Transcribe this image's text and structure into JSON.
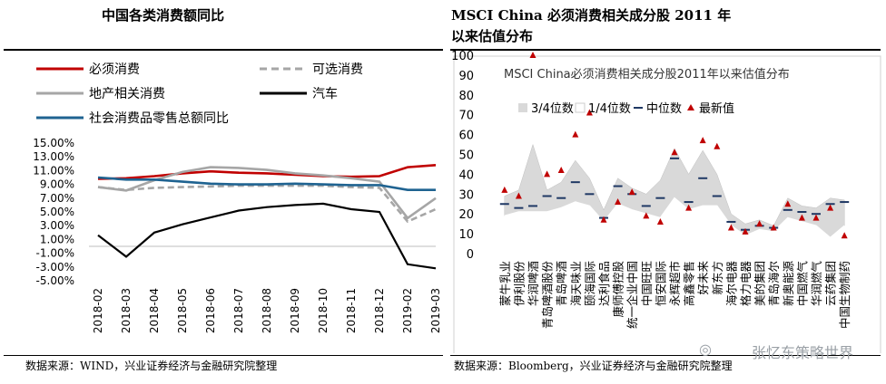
{
  "left_panel": {
    "title": "中国各类消费额同比",
    "source": "数据来源：WIND，兴业证券经济与金融研究院整理"
  },
  "right_panel": {
    "title_line1": "MSCI China 必须消费相关成分股 2011 年",
    "title_line2": "以来估值分布",
    "source": "数据来源：Bloomberg，兴业证券经济与金融研究院整理"
  },
  "watermark": "张忆东策略世界",
  "chart_data": [
    {
      "type": "line",
      "title": "",
      "x": [
        "2018-02",
        "2018-03",
        "2018-04",
        "2018-05",
        "2018-06",
        "2018-07",
        "2018-08",
        "2018-09",
        "2018-10",
        "2018-11",
        "2018-12",
        "2019-02",
        "2019-03"
      ],
      "ylim": [
        -5,
        15
      ],
      "yticks": [
        "15.00%",
        "13.00%",
        "11.00%",
        "9.00%",
        "7.00%",
        "5.00%",
        "3.00%",
        "1.00%",
        "-1.00%",
        "-3.00%",
        "-5.00%"
      ],
      "legend_position": "top",
      "series": [
        {
          "name": "必须消费",
          "color": "#c00000",
          "dash": "solid",
          "values": [
            9.8,
            9.9,
            10.2,
            10.6,
            10.9,
            10.7,
            10.6,
            10.4,
            10.2,
            10.1,
            10.2,
            11.5,
            11.8
          ]
        },
        {
          "name": "可选消费",
          "color": "#a6a6a6",
          "dash": "dashed",
          "values": [
            8.6,
            8.2,
            8.5,
            8.6,
            8.7,
            8.8,
            8.8,
            8.8,
            8.8,
            8.6,
            8.5,
            3.6,
            5.4
          ]
        },
        {
          "name": "地产相关消费",
          "color": "#a6a6a6",
          "dash": "solid",
          "values": [
            8.6,
            8.1,
            9.6,
            10.8,
            11.5,
            11.4,
            11.1,
            10.6,
            10.3,
            9.9,
            9.4,
            4.1,
            7.0
          ]
        },
        {
          "name": "汽车",
          "color": "#000000",
          "dash": "solid",
          "values": [
            1.6,
            -1.5,
            2.0,
            3.2,
            4.2,
            5.2,
            5.7,
            6.0,
            6.2,
            5.4,
            5.0,
            -2.6,
            -3.2
          ]
        },
        {
          "name": "社会消费品零售总额同比",
          "color": "#1f6391",
          "dash": "solid",
          "values": [
            10.0,
            9.7,
            9.7,
            9.4,
            9.1,
            9.0,
            9.0,
            9.1,
            9.0,
            8.9,
            8.9,
            8.2,
            8.2
          ]
        }
      ]
    },
    {
      "type": "area",
      "title": "MSCI China必须消费相关成分股2011年以来估值分布",
      "categories": [
        "蒙牛乳业",
        "伊利股份",
        "华润啤酒",
        "青岛啤酒股份",
        "青岛啤酒",
        "海天味业",
        "颐海国际",
        "达利食品",
        "康师傅控股",
        "统一企业中国",
        "中国旺旺",
        "恒安国际",
        "永辉超市",
        "高鑫零售",
        "好未来",
        "新东方",
        "海尔电器",
        "格力电器",
        "美的集团",
        "青岛海尔",
        "新奥能源",
        "中国燃气",
        "华润燃气",
        "云药集团",
        "中国生物制药"
      ],
      "ylim": [
        0,
        100
      ],
      "yticks": [
        0,
        10,
        20,
        30,
        40,
        50,
        60,
        70,
        80,
        90,
        100
      ],
      "legend_position": "top",
      "series": [
        {
          "name": "3/4位数",
          "color": "#d9d9d9",
          "values": [
            29,
            32,
            55,
            32,
            36,
            47,
            38,
            22,
            38,
            33,
            30,
            37,
            53,
            40,
            52,
            40,
            20,
            15,
            17,
            14,
            28,
            24,
            23,
            28,
            27
          ]
        },
        {
          "name": "1/4位数",
          "color": "#d9d9d9",
          "values": [
            19,
            21,
            21,
            21,
            23,
            26,
            24,
            16,
            25,
            22,
            20,
            18,
            28,
            22,
            24,
            24,
            14,
            9,
            12,
            11,
            18,
            16,
            14,
            8,
            14
          ]
        },
        {
          "name": "中位数",
          "color": "#1f3864",
          "values": [
            25,
            23,
            24,
            29,
            28,
            36,
            30,
            18,
            34,
            30,
            24,
            28,
            48,
            26,
            38,
            29,
            16,
            12,
            14,
            13,
            22,
            21,
            20,
            25,
            26
          ]
        },
        {
          "name": "最新值",
          "color": "#c00000",
          "values": [
            32,
            29,
            100,
            40,
            42,
            60,
            71,
            17,
            26,
            31,
            19,
            16,
            51,
            23,
            57,
            54,
            13,
            11,
            15,
            13,
            25,
            18,
            18,
            23,
            9
          ]
        }
      ]
    }
  ]
}
